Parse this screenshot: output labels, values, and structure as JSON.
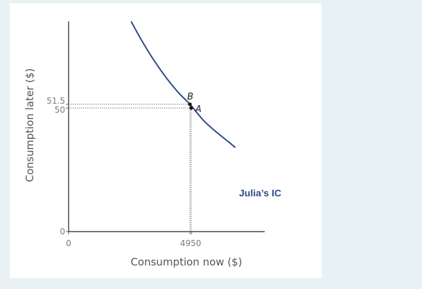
{
  "chart_data": {
    "type": "line",
    "xlabel": "Consumption now ($)",
    "ylabel": "Consumption later ($)",
    "x_ticks": [
      {
        "value": 0,
        "label": "0"
      },
      {
        "value": 49.5,
        "label": "49",
        "label2": "50"
      }
    ],
    "y_ticks": [
      {
        "value": 0,
        "label": "0"
      },
      {
        "value": 50,
        "label": "50"
      },
      {
        "value": 51.5,
        "label": "51.5"
      }
    ],
    "xlim": [
      0,
      80
    ],
    "ylim": [
      0,
      85
    ],
    "series": [
      {
        "name": "Julia's IC",
        "label": "Julia’s IC",
        "color": "#2e4a86",
        "x": [
          25.5,
          30,
          35,
          40,
          45,
          49.5,
          55,
          60,
          65,
          68
        ],
        "y": [
          85,
          77,
          69,
          62,
          56,
          51.5,
          45,
          40.5,
          36.5,
          34
        ]
      }
    ],
    "points": [
      {
        "name": "B",
        "x": 49.5,
        "y": 51.5
      },
      {
        "name": "A",
        "x": 50,
        "y": 50
      }
    ]
  }
}
